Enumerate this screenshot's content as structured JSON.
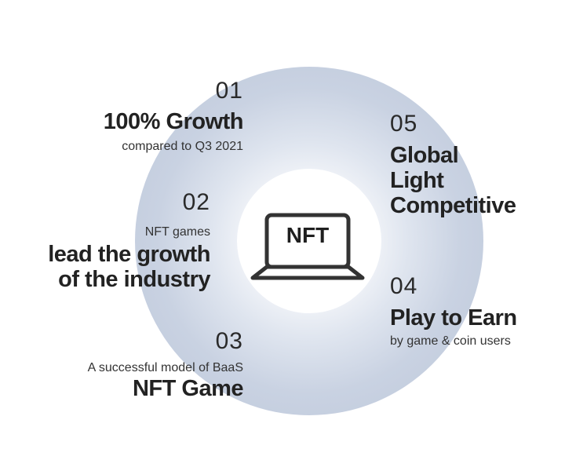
{
  "center": {
    "label": "NFT",
    "icon": "laptop-icon"
  },
  "items": [
    {
      "number": "01",
      "title": "100% Growth",
      "subtitle": "compared to Q3 2021"
    },
    {
      "number": "02",
      "subtitle": "NFT games",
      "title_lines": [
        "lead the growth",
        "of the industry"
      ]
    },
    {
      "number": "03",
      "subtitle": "A successful model of BaaS",
      "title": "NFT Game"
    },
    {
      "number": "04",
      "title": "Play to Earn",
      "subtitle": "by game & coin users"
    },
    {
      "number": "05",
      "title_lines": [
        "Global",
        "Light",
        "Competitive"
      ]
    }
  ],
  "colors": {
    "ring": "#c9d2e2",
    "text": "#222222",
    "background": "#ffffff"
  }
}
